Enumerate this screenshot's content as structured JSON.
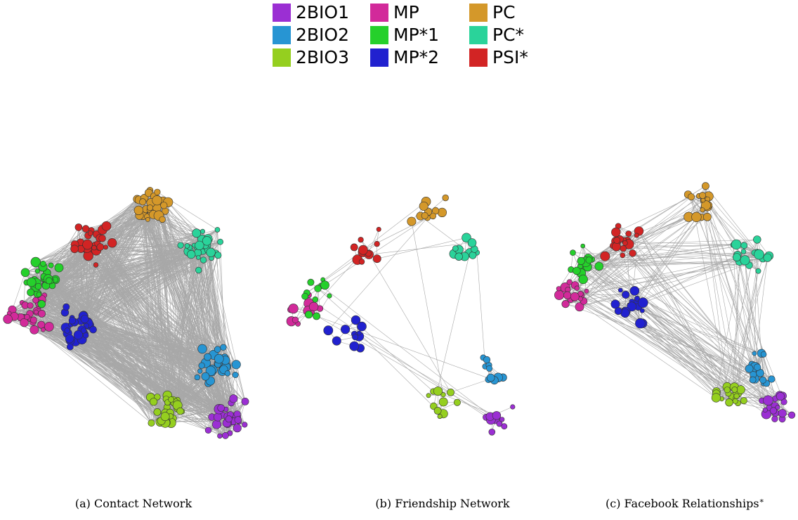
{
  "legend": [
    {
      "name": "2BIO1",
      "color": "#9b2fd3"
    },
    {
      "name": "2BIO2",
      "color": "#2795d3"
    },
    {
      "name": "2BIO3",
      "color": "#95cf1f"
    },
    {
      "name": "MP",
      "color": "#d22a9a"
    },
    {
      "name": "MP*1",
      "color": "#25d02b"
    },
    {
      "name": "MP*2",
      "color": "#2121cf"
    },
    {
      "name": "PC",
      "color": "#d4982a"
    },
    {
      "name": "PC*",
      "color": "#2ad39a"
    },
    {
      "name": "PSI*",
      "color": "#d22424"
    }
  ],
  "captions": [
    "(a) Contact Network",
    "(b) Friendship Network",
    "(c) Facebook Relationships"
  ],
  "caption_c_mark": "∗"
}
